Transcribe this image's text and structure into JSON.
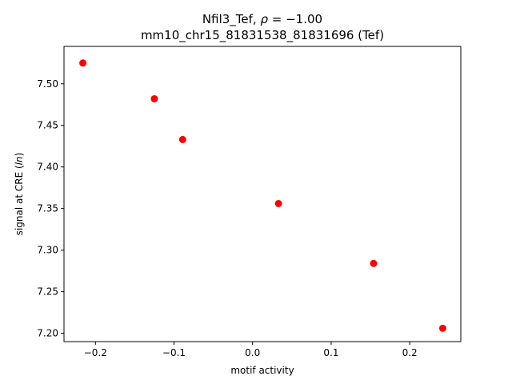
{
  "chart_data": {
    "type": "scatter",
    "title_line1_prefix": "Nfil3_Tef, ",
    "title_line1_rho": "ρ",
    "title_line1_suffix": " = −1.00",
    "title_line2": "mm10_chr15_81831538_81831696 (Tef)",
    "xlabel": "motif activity",
    "ylabel_prefix": "signal at CRE (",
    "ylabel_italic": "ln",
    "ylabel_suffix": ")",
    "xlim": [
      -0.24,
      0.265
    ],
    "ylim": [
      7.19,
      7.545
    ],
    "x_ticks": [
      -0.2,
      -0.1,
      0.0,
      0.1,
      0.2
    ],
    "x_tick_labels": [
      "−0.2",
      "−0.1",
      "0.0",
      "0.1",
      "0.2"
    ],
    "y_ticks": [
      7.2,
      7.25,
      7.3,
      7.35,
      7.4,
      7.45,
      7.5
    ],
    "y_tick_labels": [
      "7.20",
      "7.25",
      "7.30",
      "7.35",
      "7.40",
      "7.45",
      "7.50"
    ],
    "point_color": "#ff0000",
    "grid": false,
    "points": [
      {
        "x": -0.216,
        "y": 7.525
      },
      {
        "x": -0.125,
        "y": 7.482
      },
      {
        "x": -0.089,
        "y": 7.433
      },
      {
        "x": 0.033,
        "y": 7.356
      },
      {
        "x": 0.154,
        "y": 7.284
      },
      {
        "x": 0.242,
        "y": 7.206
      }
    ]
  }
}
